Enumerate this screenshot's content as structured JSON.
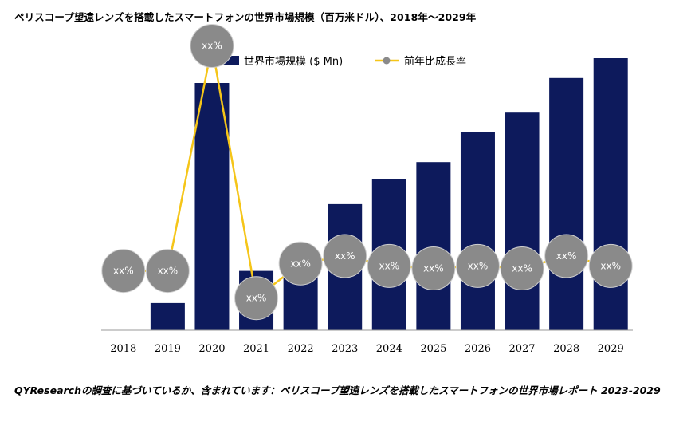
{
  "title": "ペリスコープ望遠レンズを搭載したスマートフォンの世界市場規模（百万米ドル）、2018年〜2029年",
  "caption": "QYResearchの調査に基づいているか、含まれています：ペリスコープ望遠レンズを搭載したスマートフォンの世界市場レポート 2023-2029",
  "colors": {
    "bar": "#0d1a5c",
    "line": "#f5c518",
    "marker": "#8a8a8a",
    "marker_text": "#ffffff",
    "axis": "#999999"
  },
  "chart_data": {
    "type": "bar",
    "categories": [
      "2018",
      "2019",
      "2020",
      "2021",
      "2022",
      "2023",
      "2024",
      "2025",
      "2026",
      "2027",
      "2028",
      "2029"
    ],
    "series": [
      {
        "name": "世界市場規模 ($ Mn)",
        "type": "bar",
        "values": [
          0,
          11,
          100,
          24,
          30,
          51,
          61,
          68,
          80,
          88,
          102,
          110
        ]
      },
      {
        "name": "前年比成長率",
        "type": "line",
        "values": [
          24,
          24,
          115,
          13,
          27,
          30,
          26,
          25,
          26,
          25,
          30,
          26
        ],
        "labels": [
          "xx%",
          "xx%",
          "xx%",
          "xx%",
          "xx%",
          "xx%",
          "xx%",
          "xx%",
          "xx%",
          "xx%",
          "xx%",
          "xx%"
        ]
      }
    ],
    "ylim": [
      0,
      120
    ],
    "legend_position": "top-center",
    "grid": false
  }
}
